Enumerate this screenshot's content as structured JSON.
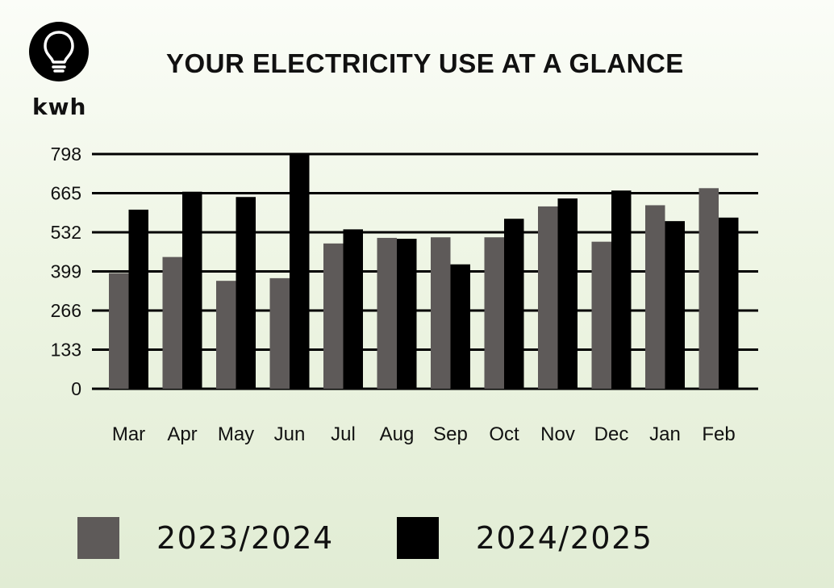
{
  "header": {
    "title": "YOUR ELECTRICITY USE AT A GLANCE",
    "unit": "kwh",
    "icon": "lightbulb-icon"
  },
  "colors": {
    "series_2023_2024": "#5e5a59",
    "series_2024_2025": "#000000",
    "gridline": "#000000",
    "icon_background": "#000000"
  },
  "chart_data": {
    "type": "bar",
    "title": "YOUR ELECTRICITY USE AT A GLANCE",
    "ylabel": "kwh",
    "xlabel": "",
    "ylim": [
      0,
      798
    ],
    "yticks": [
      "0",
      "133",
      "266",
      "399",
      "532",
      "665",
      "798"
    ],
    "grid": true,
    "legend_position": "bottom",
    "categories": [
      "Mar",
      "Apr",
      "May",
      "Jun",
      "Jul",
      "Aug",
      "Sep",
      "Oct",
      "Nov",
      "Dec",
      "Jan",
      "Feb"
    ],
    "series": [
      {
        "name": "2023/2024",
        "color": "#5e5a59",
        "values": [
          393,
          448,
          367,
          376,
          494,
          513,
          515,
          515,
          620,
          500,
          624,
          682
        ]
      },
      {
        "name": "2024/2025",
        "color": "#000000",
        "values": [
          609,
          670,
          652,
          798,
          542,
          510,
          423,
          578,
          647,
          674,
          570,
          582
        ]
      }
    ]
  }
}
